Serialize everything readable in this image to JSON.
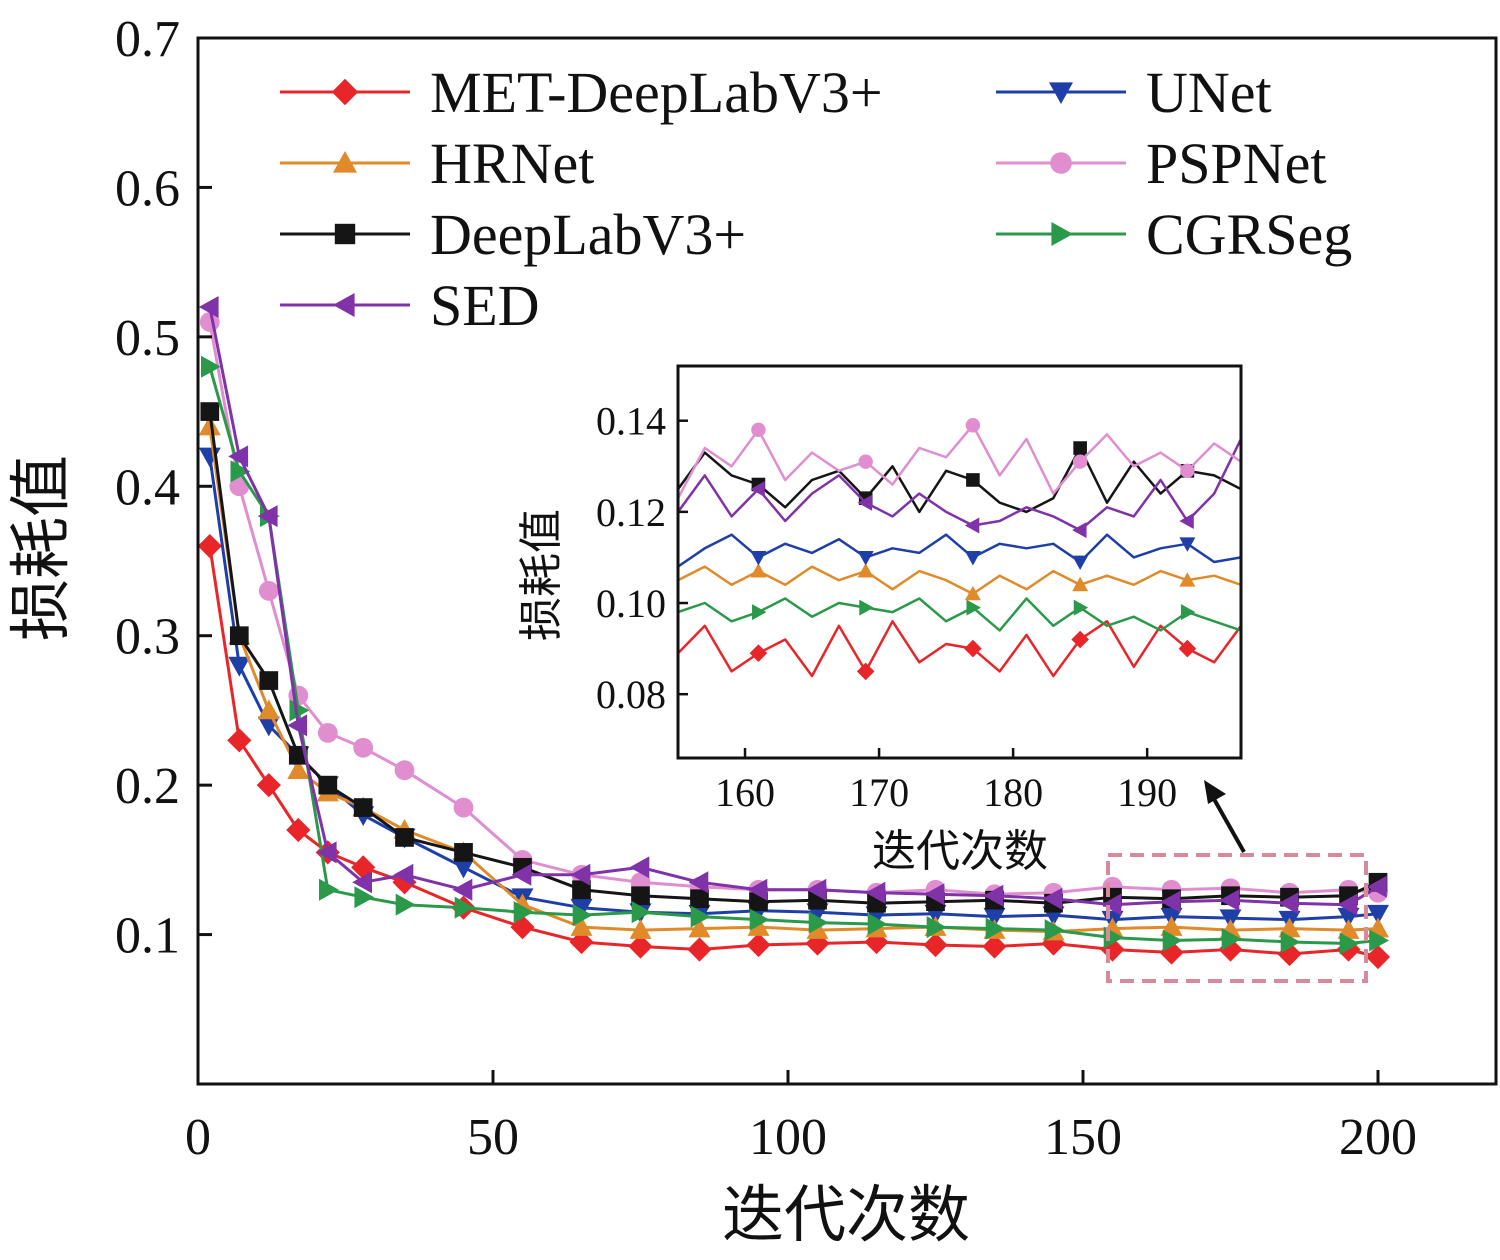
{
  "chart_data": {
    "type": "line",
    "xlabel": "迭代次数",
    "ylabel": "损耗值",
    "xlim": [
      0,
      220
    ],
    "ylim": [
      0,
      0.7
    ],
    "xticks": [
      0,
      50,
      100,
      150,
      200
    ],
    "xtick_labels": [
      "0",
      "50",
      "100",
      "150",
      "200"
    ],
    "yticks": [
      0.1,
      0.2,
      0.3,
      0.4,
      0.5,
      0.6,
      0.7
    ],
    "ytick_labels": [
      "0.1",
      "0.2",
      "0.3",
      "0.4",
      "0.5",
      "0.6",
      "0.7"
    ],
    "legend_position": "top-left",
    "grid": false,
    "x": [
      2,
      7,
      12,
      17,
      22,
      28,
      35,
      45,
      55,
      65,
      75,
      85,
      95,
      105,
      115,
      125,
      135,
      145,
      155,
      165,
      175,
      185,
      195,
      200
    ],
    "series": [
      {
        "name": "MET-DeepLabV3+",
        "color": "#e8262a",
        "marker": "diamond",
        "values": [
          0.36,
          0.23,
          0.2,
          0.17,
          0.155,
          0.145,
          0.135,
          0.118,
          0.105,
          0.095,
          0.092,
          0.09,
          0.093,
          0.094,
          0.095,
          0.093,
          0.092,
          0.094,
          0.09,
          0.088,
          0.09,
          0.087,
          0.09,
          0.085
        ]
      },
      {
        "name": "UNet",
        "color": "#1f3fa8",
        "marker": "triangle-down",
        "values": [
          0.42,
          0.28,
          0.24,
          0.22,
          0.2,
          0.18,
          0.165,
          0.145,
          0.125,
          0.118,
          0.115,
          0.114,
          0.116,
          0.115,
          0.113,
          0.114,
          0.112,
          0.113,
          0.11,
          0.112,
          0.111,
          0.11,
          0.112,
          0.114
        ]
      },
      {
        "name": "HRNet",
        "color": "#e08a2a",
        "marker": "triangle-up",
        "values": [
          0.44,
          0.3,
          0.25,
          0.21,
          0.195,
          0.185,
          0.17,
          0.155,
          0.12,
          0.105,
          0.103,
          0.104,
          0.105,
          0.103,
          0.104,
          0.105,
          0.103,
          0.102,
          0.104,
          0.105,
          0.103,
          0.104,
          0.103,
          0.104
        ]
      },
      {
        "name": "PSPNet",
        "color": "#e08ed0",
        "marker": "circle",
        "values": [
          0.51,
          0.4,
          0.33,
          0.26,
          0.235,
          0.225,
          0.21,
          0.185,
          0.15,
          0.14,
          0.135,
          0.132,
          0.13,
          0.13,
          0.128,
          0.13,
          0.127,
          0.128,
          0.132,
          0.13,
          0.131,
          0.128,
          0.13,
          0.128
        ]
      },
      {
        "name": "DeepLabV3+",
        "color": "#151515",
        "marker": "square",
        "values": [
          0.45,
          0.3,
          0.27,
          0.22,
          0.2,
          0.185,
          0.165,
          0.155,
          0.145,
          0.13,
          0.126,
          0.124,
          0.122,
          0.123,
          0.121,
          0.122,
          0.123,
          0.121,
          0.125,
          0.124,
          0.126,
          0.125,
          0.126,
          0.135
        ]
      },
      {
        "name": "CGRSeg",
        "color": "#2a9a4a",
        "marker": "triangle-right",
        "values": [
          0.48,
          0.41,
          0.38,
          0.25,
          0.13,
          0.125,
          0.12,
          0.118,
          0.115,
          0.113,
          0.115,
          0.112,
          0.11,
          0.108,
          0.107,
          0.105,
          0.104,
          0.103,
          0.098,
          0.096,
          0.097,
          0.095,
          0.094,
          0.096
        ]
      },
      {
        "name": "SED",
        "color": "#8032a8",
        "marker": "triangle-left",
        "values": [
          0.52,
          0.42,
          0.38,
          0.24,
          0.155,
          0.135,
          0.14,
          0.13,
          0.14,
          0.14,
          0.145,
          0.135,
          0.13,
          0.13,
          0.128,
          0.127,
          0.126,
          0.124,
          0.12,
          0.122,
          0.123,
          0.121,
          0.12,
          0.132
        ]
      }
    ],
    "inset": {
      "xlabel": "迭代次数",
      "ylabel": "损耗值",
      "xlim": [
        155,
        197
      ],
      "ylim": [
        0.066,
        0.152
      ],
      "xticks": [
        160,
        170,
        180,
        190
      ],
      "xtick_labels": [
        "160",
        "170",
        "180",
        "190"
      ],
      "yticks": [
        0.08,
        0.1,
        0.12,
        0.14
      ],
      "ytick_labels": [
        "0.08",
        "0.10",
        "0.12",
        "0.14"
      ],
      "x": [
        155,
        157,
        159,
        161,
        163,
        165,
        167,
        169,
        171,
        173,
        175,
        177,
        179,
        181,
        183,
        185,
        187,
        189,
        191,
        193,
        195,
        197
      ],
      "series": [
        {
          "name": "MET-DeepLabV3+",
          "values": [
            0.089,
            0.095,
            0.085,
            0.089,
            0.092,
            0.084,
            0.095,
            0.085,
            0.096,
            0.087,
            0.091,
            0.09,
            0.085,
            0.093,
            0.084,
            0.092,
            0.096,
            0.086,
            0.095,
            0.09,
            0.087,
            0.095
          ]
        },
        {
          "name": "CGRSeg",
          "values": [
            0.098,
            0.1,
            0.096,
            0.098,
            0.101,
            0.097,
            0.1,
            0.099,
            0.098,
            0.101,
            0.096,
            0.099,
            0.094,
            0.101,
            0.095,
            0.099,
            0.095,
            0.097,
            0.094,
            0.098,
            0.096,
            0.094
          ]
        },
        {
          "name": "HRNet",
          "values": [
            0.105,
            0.108,
            0.104,
            0.107,
            0.104,
            0.108,
            0.105,
            0.107,
            0.103,
            0.107,
            0.105,
            0.102,
            0.106,
            0.103,
            0.107,
            0.104,
            0.106,
            0.104,
            0.107,
            0.105,
            0.106,
            0.104
          ]
        },
        {
          "name": "UNet",
          "values": [
            0.108,
            0.112,
            0.115,
            0.11,
            0.113,
            0.111,
            0.114,
            0.11,
            0.112,
            0.111,
            0.115,
            0.11,
            0.113,
            0.112,
            0.113,
            0.109,
            0.115,
            0.11,
            0.112,
            0.113,
            0.109,
            0.11
          ]
        },
        {
          "name": "DeepLabV3+",
          "values": [
            0.125,
            0.133,
            0.128,
            0.126,
            0.121,
            0.127,
            0.129,
            0.123,
            0.13,
            0.12,
            0.129,
            0.127,
            0.122,
            0.12,
            0.123,
            0.134,
            0.122,
            0.131,
            0.124,
            0.129,
            0.128,
            0.125
          ]
        },
        {
          "name": "SED",
          "values": [
            0.12,
            0.128,
            0.119,
            0.125,
            0.118,
            0.124,
            0.128,
            0.122,
            0.119,
            0.124,
            0.12,
            0.117,
            0.118,
            0.121,
            0.119,
            0.116,
            0.121,
            0.119,
            0.127,
            0.118,
            0.124,
            0.136
          ]
        },
        {
          "name": "PSPNet",
          "values": [
            0.123,
            0.134,
            0.13,
            0.138,
            0.127,
            0.133,
            0.129,
            0.131,
            0.126,
            0.134,
            0.132,
            0.139,
            0.128,
            0.136,
            0.124,
            0.131,
            0.137,
            0.13,
            0.133,
            0.129,
            0.135,
            0.131
          ]
        }
      ]
    }
  }
}
